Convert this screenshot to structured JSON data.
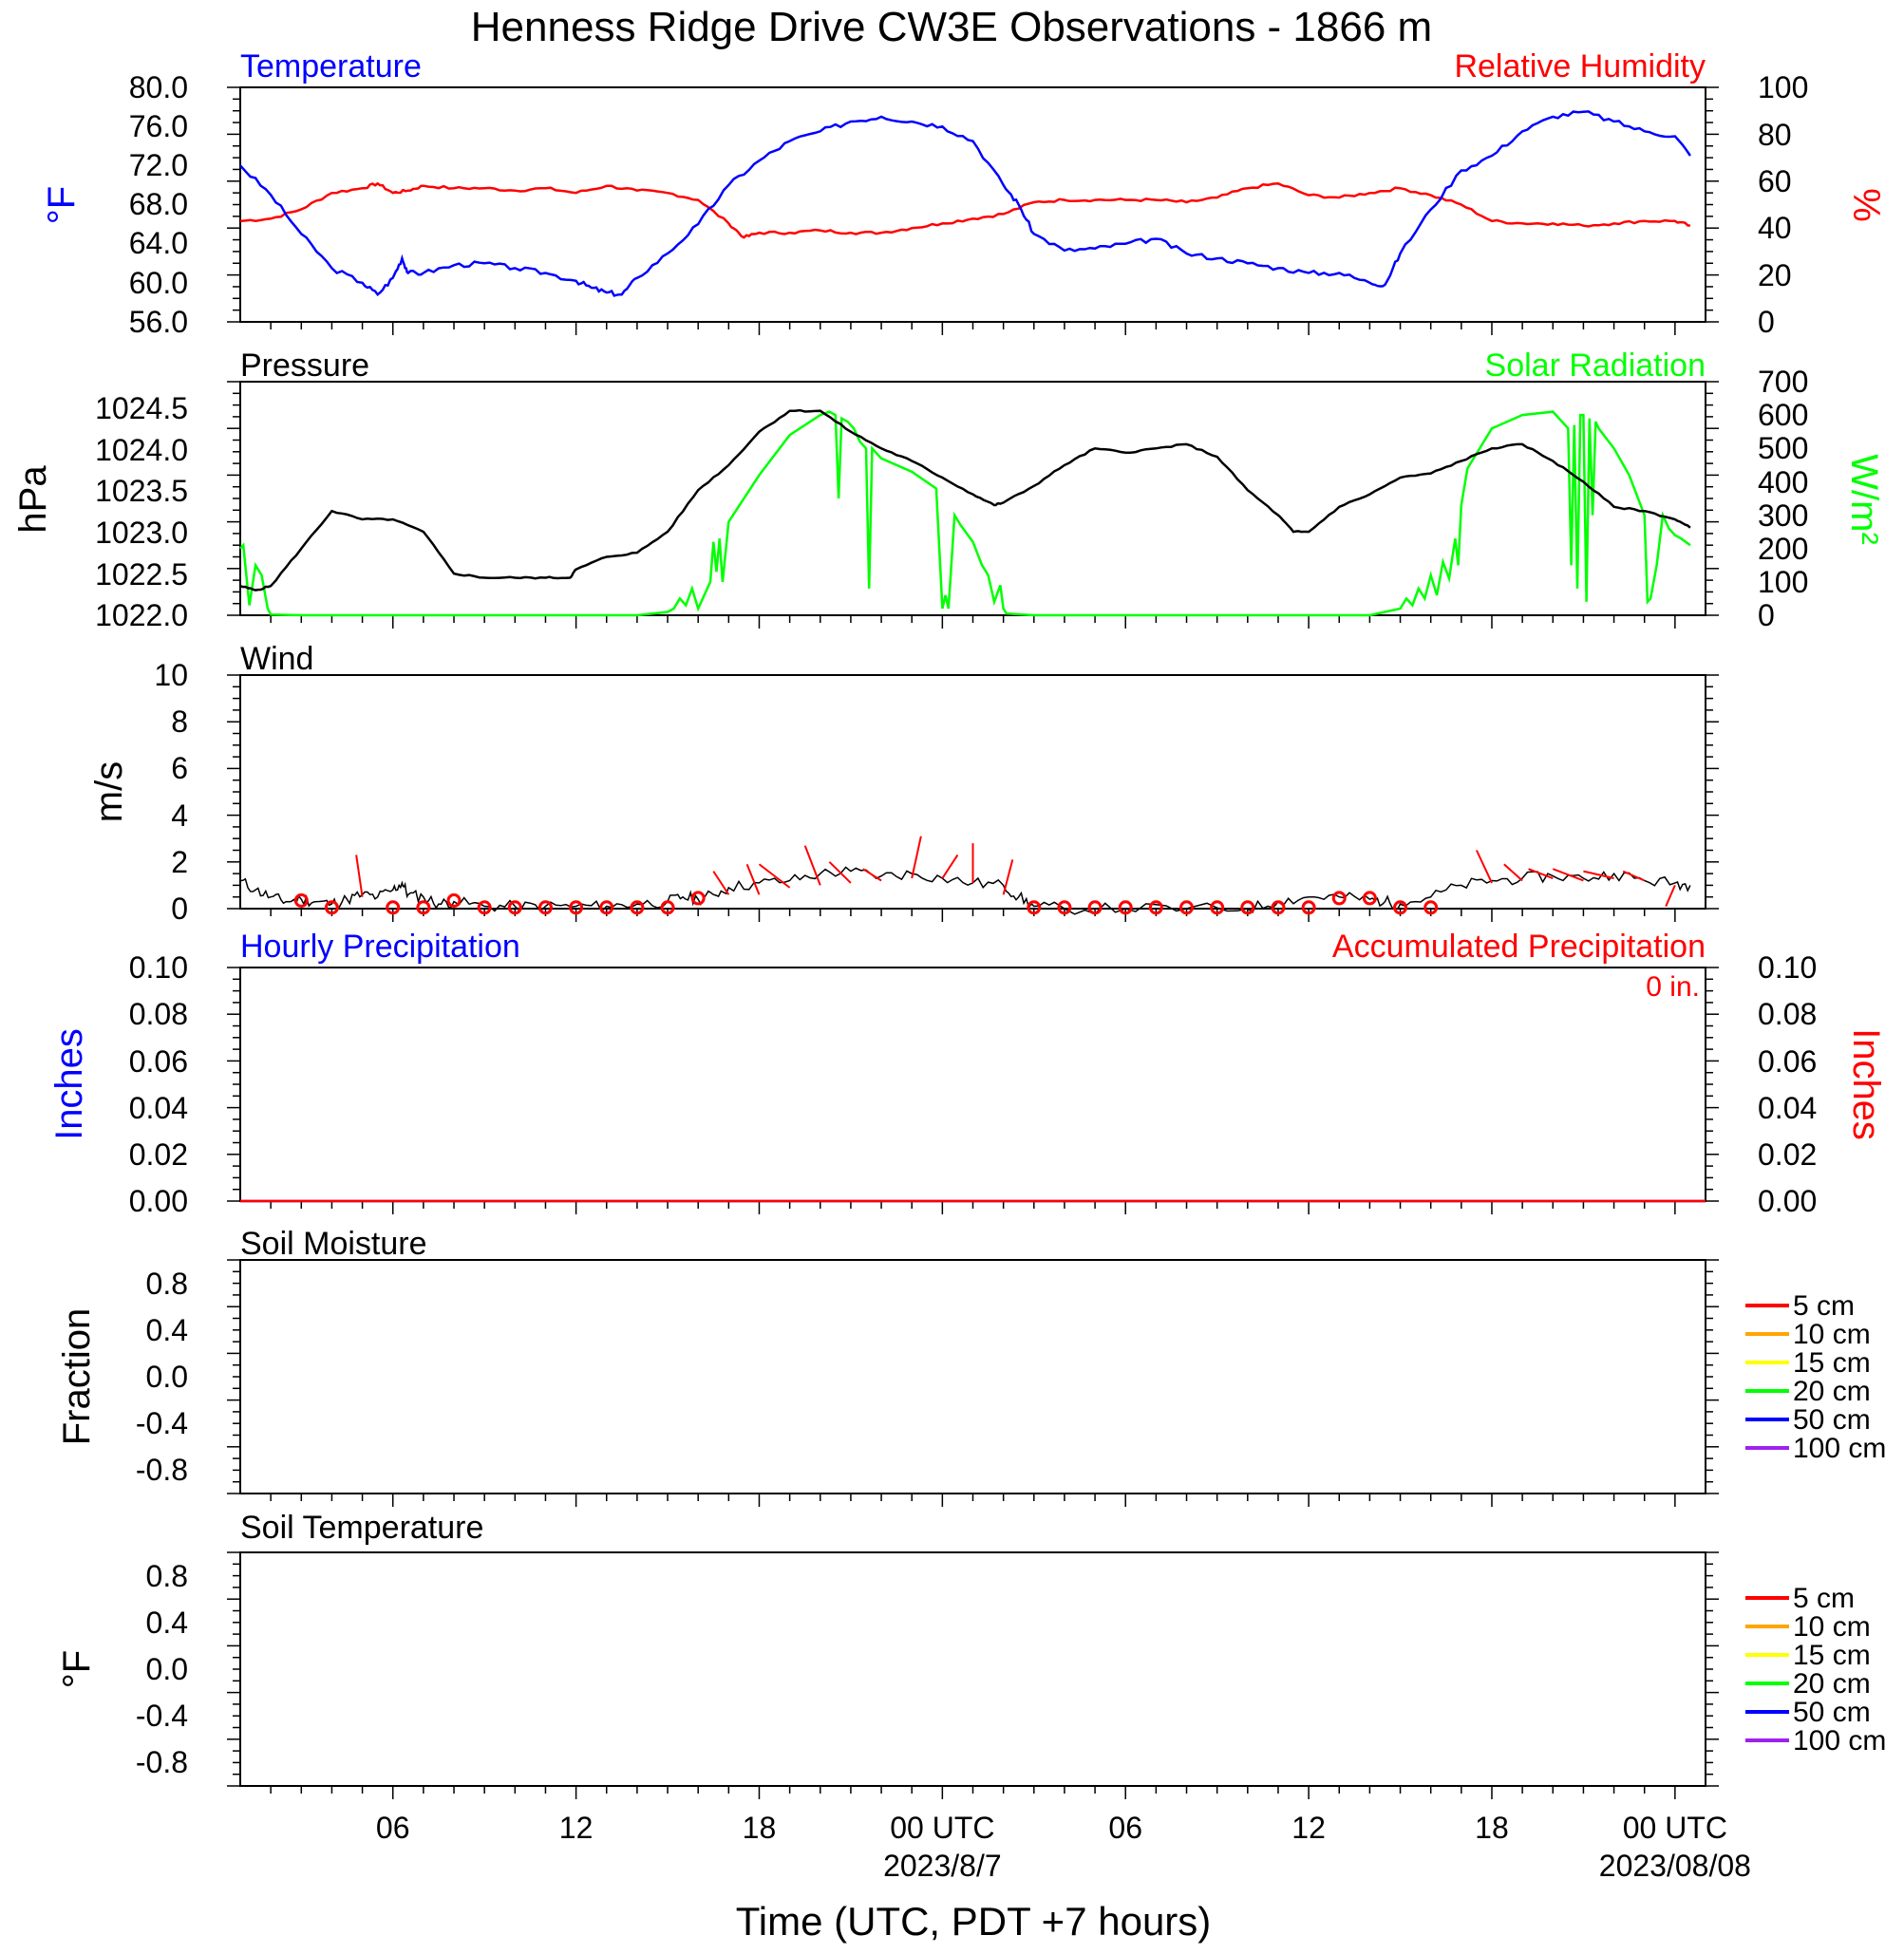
{
  "title": "Henness Ridge Drive CW3E Observations - 1866 m",
  "xaxis": {
    "label": "Time (UTC, PDT +7 hours)",
    "ticks": [
      {
        "t": 6,
        "label": "06",
        "date": ""
      },
      {
        "t": 12,
        "label": "12",
        "date": ""
      },
      {
        "t": 18,
        "label": "18",
        "date": ""
      },
      {
        "t": 24,
        "label": "00 UTC",
        "date": "2023/8/7"
      },
      {
        "t": 30,
        "label": "06",
        "date": ""
      },
      {
        "t": 36,
        "label": "12",
        "date": ""
      },
      {
        "t": 42,
        "label": "18",
        "date": ""
      },
      {
        "t": 48,
        "label": "00 UTC",
        "date": "2023/08/08"
      }
    ]
  },
  "colors": {
    "temperature": "#0000ff",
    "humidity": "#ff0000",
    "pressure": "#000000",
    "solar": "#00ff00",
    "wind": "#000000",
    "barb": "#ff0000",
    "hourly_precip": "#0000ff",
    "accum_precip": "#ff0000"
  },
  "legend_soil": [
    {
      "label": "5 cm",
      "color": "#ff0000"
    },
    {
      "label": "10 cm",
      "color": "#ffa500"
    },
    {
      "label": "15 cm",
      "color": "#ffff00"
    },
    {
      "label": "20 cm",
      "color": "#00ff00"
    },
    {
      "label": "50 cm",
      "color": "#0000ff"
    },
    {
      "label": "100 cm",
      "color": "#a020f0"
    }
  ],
  "panels": [
    {
      "id": "temp",
      "left_title": "Temperature",
      "right_title": "Relative Humidity",
      "left_unit": "°F",
      "right_unit": "%",
      "left_ticks": [
        "56.0",
        "60.0",
        "64.0",
        "68.0",
        "72.0",
        "76.0",
        "80.0"
      ],
      "right_ticks": [
        "0",
        "20",
        "40",
        "60",
        "80",
        "100"
      ]
    },
    {
      "id": "pres",
      "left_title": "Pressure",
      "right_title": "Solar Radiation",
      "left_unit": "hPa",
      "right_unit": "W/m²",
      "left_ticks": [
        "1022.0",
        "1022.5",
        "1023.0",
        "1023.5",
        "1024.0",
        "1024.5"
      ],
      "right_ticks": [
        "0",
        "100",
        "200",
        "300",
        "400",
        "500",
        "600",
        "700"
      ]
    },
    {
      "id": "wind",
      "left_title": "Wind",
      "left_unit": "m/s",
      "left_ticks": [
        "0",
        "2",
        "4",
        "6",
        "8",
        "10"
      ]
    },
    {
      "id": "precip",
      "left_title": "Hourly Precipitation",
      "right_title": "Accumulated Precipitation",
      "right_note": "0 in.",
      "left_unit": "Inches",
      "right_unit": "Inches",
      "left_ticks": [
        "0.00",
        "0.02",
        "0.04",
        "0.06",
        "0.08",
        "0.10"
      ],
      "right_ticks": [
        "0.00",
        "0.02",
        "0.04",
        "0.06",
        "0.08",
        "0.10"
      ]
    },
    {
      "id": "soilm",
      "left_title": "Soil Moisture",
      "left_unit": "Fraction",
      "left_ticks": [
        "-0.8",
        "-0.4",
        "0.0",
        "0.4",
        "0.8"
      ]
    },
    {
      "id": "soilt",
      "left_title": "Soil Temperature",
      "left_unit": "°F",
      "left_ticks": [
        "-0.8",
        "-0.4",
        "0.0",
        "0.4",
        "0.8"
      ]
    }
  ],
  "chart_data": [
    {
      "type": "line",
      "title": "Temperature",
      "x_units": "hours since 2023-08-06 00 UTC",
      "xlim": [
        1,
        49
      ],
      "ylim": [
        56,
        80
      ],
      "y2lim": [
        0,
        100
      ],
      "series": [
        {
          "name": "Temperature",
          "axis": "left",
          "x": [
            1,
            2,
            3,
            4,
            5,
            5.5,
            6,
            6.3,
            6.5,
            7,
            8,
            9,
            10,
            11,
            12,
            12.5,
            13,
            13.5,
            14,
            15,
            16,
            17,
            18,
            19,
            20,
            21,
            22,
            23,
            24,
            25,
            26,
            26.5,
            27,
            28,
            29,
            30,
            31,
            32,
            33,
            34,
            35,
            36,
            37,
            38,
            38.5,
            39,
            40,
            41,
            42,
            43,
            44,
            45,
            46,
            47,
            48,
            48.5
          ],
          "values": [
            72,
            69,
            65,
            61.5,
            60,
            58.8,
            60.5,
            62.5,
            61,
            61,
            61.8,
            62,
            61.5,
            61,
            60.2,
            59.5,
            59,
            58.8,
            60.5,
            63,
            66,
            70,
            72.5,
            74.5,
            75.5,
            76.5,
            77,
            76.5,
            76,
            74.5,
            70,
            68,
            65,
            63.3,
            63.5,
            64,
            64.5,
            63,
            62.5,
            62,
            61.5,
            61,
            61,
            60,
            59.8,
            63,
            67.5,
            71.5,
            73,
            75.5,
            77,
            77.5,
            76.5,
            75.5,
            75,
            73
          ]
        },
        {
          "name": "Relative Humidity",
          "axis": "right",
          "x": [
            1,
            2,
            3,
            4,
            5,
            5.5,
            6,
            6.5,
            7,
            8,
            9,
            10,
            11,
            12,
            13,
            14,
            15,
            16,
            17,
            17.5,
            18,
            19,
            20,
            21,
            22,
            23,
            24,
            25,
            26,
            27,
            28,
            29,
            30,
            31,
            32,
            33,
            34,
            35,
            36,
            37,
            38,
            39,
            40,
            41,
            42,
            43,
            44,
            45,
            46,
            47,
            48,
            48.5
          ],
          "values": [
            43,
            44,
            48,
            55,
            57,
            59,
            55,
            56,
            58,
            57,
            57,
            56,
            57,
            55,
            58,
            56,
            55,
            52,
            42,
            36,
            38,
            38,
            39,
            38,
            38,
            40,
            42,
            44,
            46,
            51,
            52,
            52,
            52,
            52,
            51,
            53,
            57,
            59,
            54,
            53,
            55,
            57,
            54,
            50,
            43,
            42,
            42,
            41,
            42,
            43,
            43,
            41
          ]
        }
      ]
    },
    {
      "type": "line",
      "title": "Pressure",
      "x_units": "hours since 2023-08-06 00 UTC",
      "xlim": [
        1,
        49
      ],
      "ylim": [
        1022,
        1024.8
      ],
      "y2lim": [
        0,
        700
      ],
      "series": [
        {
          "name": "Pressure",
          "axis": "left",
          "x": [
            1,
            1.5,
            2,
            3,
            4,
            5,
            6,
            7,
            8,
            9,
            10,
            11,
            11.8,
            12,
            13,
            14,
            15,
            16,
            17,
            18,
            19,
            20,
            21,
            22,
            23,
            24,
            25,
            25.7,
            26,
            27,
            28,
            29,
            30,
            31,
            32,
            33,
            34,
            35,
            35.5,
            36,
            37,
            38,
            39,
            40,
            41,
            42,
            43,
            44,
            45,
            46,
            47,
            48,
            48.5
          ],
          "values": [
            1022.35,
            1022.3,
            1022.35,
            1022.8,
            1023.25,
            1023.15,
            1023.15,
            1023.0,
            1022.5,
            1022.45,
            1022.45,
            1022.45,
            1022.45,
            1022.55,
            1022.7,
            1022.75,
            1023.0,
            1023.5,
            1023.8,
            1024.2,
            1024.45,
            1024.45,
            1024.2,
            1024.0,
            1023.85,
            1023.65,
            1023.45,
            1023.32,
            1023.35,
            1023.55,
            1023.8,
            1024.0,
            1023.95,
            1024.0,
            1024.05,
            1023.9,
            1023.5,
            1023.2,
            1023.0,
            1023.0,
            1023.3,
            1023.45,
            1023.65,
            1023.7,
            1023.85,
            1024.0,
            1024.05,
            1023.85,
            1023.6,
            1023.3,
            1023.25,
            1023.15,
            1023.05
          ]
        },
        {
          "name": "Solar Radiation",
          "axis": "right",
          "x": [
            1,
            1.1,
            1.3,
            1.5,
            1.7,
            1.9,
            2,
            3,
            10,
            14,
            15,
            15.2,
            15.4,
            15.6,
            15.8,
            16,
            16.2,
            16.4,
            16.5,
            16.6,
            16.7,
            16.8,
            17,
            18,
            19,
            20,
            20.3,
            20.5,
            20.6,
            20.7,
            20.9,
            21.1,
            21.3,
            21.5,
            21.6,
            21.7,
            21.8,
            21.9,
            22,
            23,
            23.8,
            24,
            24.1,
            24.2,
            24.4,
            24.6,
            25,
            25.3,
            25.5,
            25.7,
            25.9,
            26,
            26.1,
            27,
            38,
            39,
            39.2,
            39.4,
            39.6,
            39.8,
            40,
            40.2,
            40.4,
            40.6,
            40.8,
            40.9,
            41,
            41.2,
            42,
            43,
            44,
            44.5,
            44.6,
            44.7,
            44.8,
            44.9,
            45,
            45.1,
            45.2,
            45.3,
            45.4,
            45.5,
            46,
            46.5,
            47,
            47.1,
            47.2,
            47.4,
            47.6,
            47.8,
            48,
            48.2,
            48.5
          ],
          "values": [
            200,
            210,
            30,
            150,
            120,
            20,
            2,
            0,
            0,
            0,
            10,
            20,
            50,
            30,
            80,
            20,
            60,
            100,
            220,
            130,
            230,
            100,
            280,
            420,
            540,
            600,
            610,
            600,
            350,
            590,
            580,
            560,
            520,
            500,
            80,
            500,
            490,
            480,
            470,
            430,
            380,
            20,
            60,
            20,
            300,
            270,
            220,
            150,
            120,
            40,
            90,
            20,
            5,
            0,
            0,
            20,
            50,
            30,
            80,
            50,
            120,
            60,
            160,
            110,
            230,
            150,
            330,
            440,
            560,
            600,
            610,
            560,
            150,
            570,
            80,
            600,
            600,
            40,
            590,
            300,
            580,
            560,
            500,
            420,
            300,
            40,
            50,
            150,
            300,
            260,
            240,
            230,
            210
          ]
        }
      ]
    },
    {
      "type": "line",
      "title": "Wind",
      "x_units": "hours since 2023-08-06 00 UTC",
      "xlim": [
        1,
        49
      ],
      "ylim": [
        0,
        10
      ],
      "series": [
        {
          "name": "Wind",
          "x": [
            1,
            1.5,
            2,
            2.5,
            3,
            3.5,
            4,
            4.5,
            5,
            5.5,
            6,
            6.3,
            6.5,
            7,
            7.5,
            8,
            9,
            10,
            11,
            12,
            13,
            14,
            15,
            15.5,
            16,
            16.5,
            17,
            18,
            19,
            20,
            21,
            22,
            23,
            24,
            25,
            26,
            26.5,
            27,
            28,
            30,
            32,
            34,
            35,
            36,
            37,
            38,
            38.5,
            39,
            40,
            41,
            42,
            43,
            44,
            45,
            46,
            47,
            48,
            48.5
          ],
          "values": [
            1.2,
            0.8,
            0.5,
            0.3,
            0.4,
            0.3,
            0.2,
            0.4,
            0.6,
            0.5,
            0.8,
            1.1,
            0.6,
            0.5,
            0.2,
            0.3,
            0.1,
            0.1,
            0.1,
            0.1,
            0.1,
            0.2,
            0.3,
            0.5,
            0.4,
            0.6,
            0.9,
            1.1,
            1.2,
            1.5,
            1.6,
            1.4,
            1.5,
            1.3,
            1.1,
            1.0,
            0.5,
            0.1,
            0.0,
            0.0,
            0.0,
            0.0,
            0.3,
            0.5,
            0.5,
            0.4,
            0.3,
            0.2,
            0.5,
            1.0,
            1.2,
            1.3,
            1.4,
            1.3,
            1.5,
            1.2,
            1.1,
            1.0
          ]
        }
      ],
      "calm_circles": {
        "x": [
          3,
          4,
          6,
          7,
          8,
          9,
          10,
          11,
          12,
          13,
          14,
          15,
          16,
          27,
          28,
          29,
          30,
          31,
          32,
          33,
          34,
          35,
          36,
          37,
          38,
          39,
          40
        ],
        "y": [
          0.35,
          0.05,
          0.05,
          0.05,
          0.35,
          0.05,
          0.05,
          0.05,
          0.05,
          0.05,
          0.05,
          0.05,
          0.45,
          0.05,
          0.05,
          0.05,
          0.05,
          0.05,
          0.05,
          0.05,
          0.05,
          0.05,
          0.05,
          0.45,
          0.45,
          0.05,
          0.05
        ]
      },
      "barbs": {
        "x": [
          5,
          17,
          18,
          19,
          20,
          21,
          22,
          23,
          24,
          25,
          26,
          42,
          43,
          44,
          45,
          46,
          47,
          48
        ],
        "y": [
          0.5,
          0.6,
          0.6,
          0.9,
          1.0,
          1.1,
          1.2,
          1.3,
          1.3,
          1.1,
          0.6,
          1.1,
          1.2,
          1.3,
          1.2,
          1.3,
          1.2,
          1.0
        ],
        "dx": [
          -0.2,
          -0.5,
          -0.4,
          -1.0,
          -0.5,
          -0.7,
          -0.6,
          0.3,
          0.5,
          0.0,
          0.3,
          -0.5,
          -0.6,
          -0.8,
          -1.0,
          -1.0,
          -0.7,
          -0.3
        ],
        "dy": [
          1.8,
          1.0,
          1.3,
          1.0,
          1.7,
          0.9,
          0.5,
          1.8,
          1.0,
          1.7,
          1.5,
          1.4,
          0.7,
          0.4,
          0.5,
          0.3,
          0.4,
          -0.9
        ]
      }
    },
    {
      "type": "line",
      "title": "Hourly Precipitation",
      "x_units": "hours since 2023-08-06 00 UTC",
      "xlim": [
        1,
        49
      ],
      "ylim": [
        0,
        0.1
      ],
      "y2lim": [
        0,
        0.1
      ],
      "series": [
        {
          "name": "Hourly Precipitation",
          "axis": "left",
          "x": [
            1,
            49
          ],
          "values": [
            0,
            0
          ]
        },
        {
          "name": "Accumulated Precipitation",
          "axis": "right",
          "x": [
            1,
            49
          ],
          "values": [
            0,
            0
          ]
        }
      ]
    },
    {
      "type": "line",
      "title": "Soil Moisture",
      "xlim": [
        1,
        49
      ],
      "ylim": [
        -1,
        1
      ],
      "series": []
    },
    {
      "type": "line",
      "title": "Soil Temperature",
      "xlim": [
        1,
        49
      ],
      "ylim": [
        -1,
        1
      ],
      "series": []
    }
  ]
}
